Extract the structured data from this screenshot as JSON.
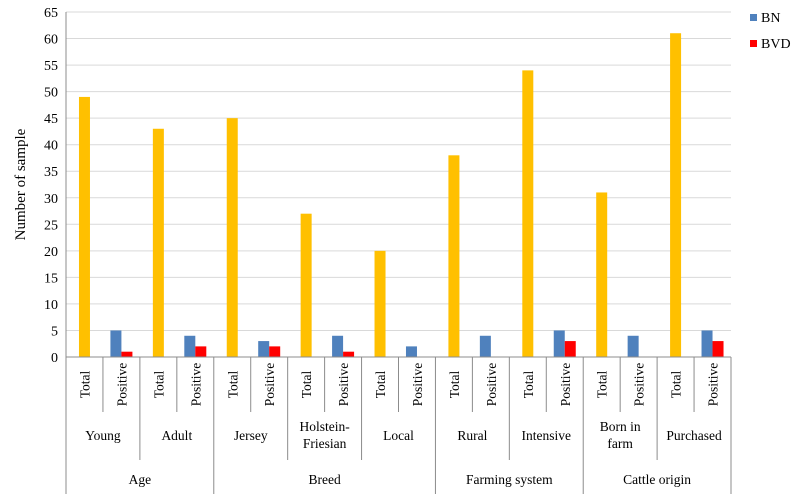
{
  "chart_data": {
    "type": "bar",
    "ylabel": "Number of sample",
    "ylim": [
      0,
      65
    ],
    "ytick_step": 5,
    "grid": true,
    "legend_position": "top-right",
    "series_colors": {
      "Total": "#FFC000",
      "BN": "#4F81BD",
      "BVD": "#FF0000"
    },
    "legend": [
      {
        "name": "BN",
        "color": "#4F81BD"
      },
      {
        "name": "BVD",
        "color": "#FF0000"
      }
    ],
    "groups": [
      {
        "name": "Age",
        "subgroups": [
          {
            "name": "Young",
            "total": 49,
            "bn": 5,
            "bvd": 1
          },
          {
            "name": "Adult",
            "total": 43,
            "bn": 4,
            "bvd": 2
          }
        ]
      },
      {
        "name": "Breed",
        "subgroups": [
          {
            "name": "Jersey",
            "total": 45,
            "bn": 3,
            "bvd": 2
          },
          {
            "name": "Holstein-\nFriesian",
            "total": 27,
            "bn": 4,
            "bvd": 1
          },
          {
            "name": "Local",
            "total": 20,
            "bn": 2,
            "bvd": 0
          }
        ]
      },
      {
        "name": "Farming system",
        "subgroups": [
          {
            "name": "Rural",
            "total": 38,
            "bn": 4,
            "bvd": 0
          },
          {
            "name": "Intensive",
            "total": 54,
            "bn": 5,
            "bvd": 3
          }
        ]
      },
      {
        "name": "Cattle origin",
        "subgroups": [
          {
            "name": "Born in\nfarm",
            "total": 31,
            "bn": 4,
            "bvd": 0
          },
          {
            "name": "Purchased",
            "total": 61,
            "bn": 5,
            "bvd": 3
          }
        ]
      }
    ],
    "level1_labels": [
      "Total",
      "Positive"
    ]
  }
}
